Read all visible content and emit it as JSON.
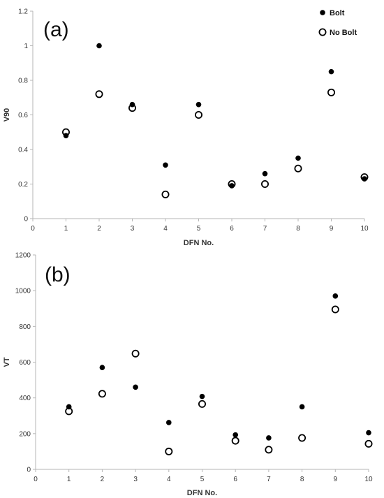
{
  "chart_data": [
    {
      "type": "scatter",
      "panel_label": "(a)",
      "title": "",
      "xlabel": "DFN No.",
      "ylabel": "V90",
      "x": [
        1,
        2,
        3,
        4,
        5,
        6,
        7,
        8,
        9,
        10
      ],
      "xlim": [
        0,
        10
      ],
      "ylim": [
        0,
        1.2
      ],
      "xticks": [
        0,
        1,
        2,
        3,
        4,
        5,
        6,
        7,
        8,
        9,
        10
      ],
      "yticks": [
        0,
        0.2,
        0.4,
        0.6,
        0.8,
        1,
        1.2
      ],
      "grid": false,
      "legend": "top-right",
      "series": [
        {
          "name": "Bolt",
          "marker": "filled-circle",
          "values": [
            0.48,
            1.0,
            0.66,
            0.31,
            0.66,
            0.19,
            0.26,
            0.35,
            0.85,
            0.23
          ]
        },
        {
          "name": "No Bolt",
          "marker": "open-circle",
          "values": [
            0.5,
            0.72,
            0.64,
            0.14,
            0.6,
            0.2,
            0.2,
            0.29,
            0.73,
            0.24
          ]
        }
      ]
    },
    {
      "type": "scatter",
      "panel_label": "(b)",
      "title": "",
      "xlabel": "DFN No.",
      "ylabel": "VT",
      "x": [
        1,
        2,
        3,
        4,
        5,
        6,
        7,
        8,
        9,
        10
      ],
      "xlim": [
        0,
        10
      ],
      "ylim": [
        0,
        1200
      ],
      "xticks": [
        0,
        1,
        2,
        3,
        4,
        5,
        6,
        7,
        8,
        9,
        10
      ],
      "yticks": [
        0,
        200,
        400,
        600,
        800,
        1000,
        1200
      ],
      "grid": false,
      "legend": "none",
      "series": [
        {
          "name": "Bolt",
          "marker": "filled-circle",
          "values": [
            350,
            570,
            460,
            262,
            408,
            193,
            176,
            350,
            970,
            205
          ]
        },
        {
          "name": "No Bolt",
          "marker": "open-circle",
          "values": [
            325,
            423,
            648,
            100,
            366,
            160,
            110,
            176,
            895,
            143
          ]
        }
      ]
    }
  ],
  "colors": {
    "marker": "#000000",
    "axis": "#b5b5b5",
    "text": "#333333"
  }
}
